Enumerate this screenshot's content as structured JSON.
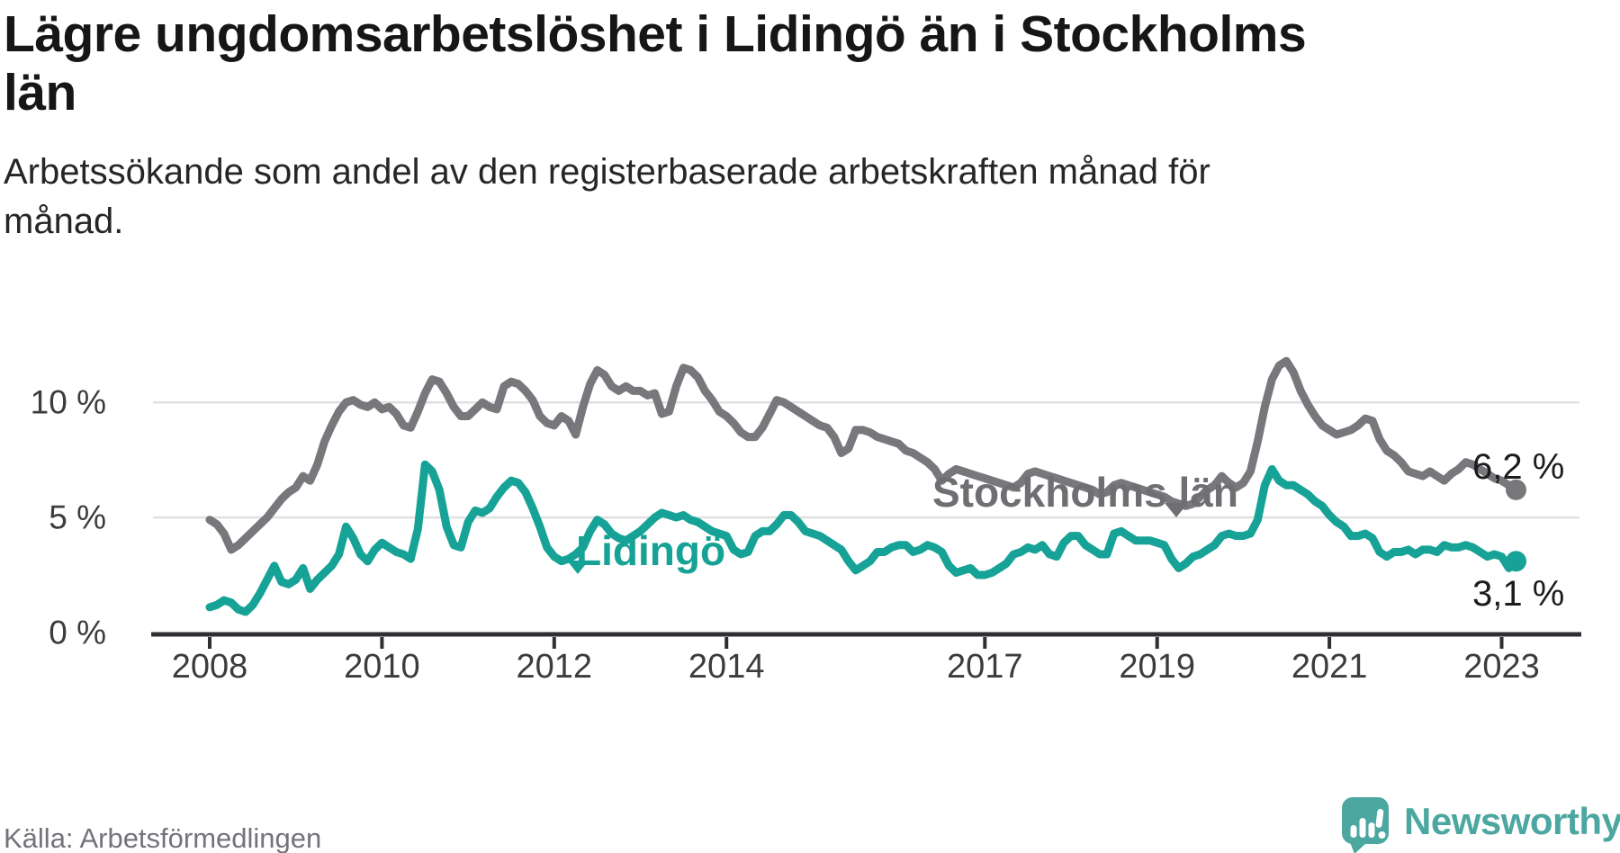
{
  "header": {
    "title_lines": [
      "Lägre ungdomsarbetslöshet i Lidingö än i Stockholms",
      "län"
    ],
    "subtitle_lines": [
      "Arbetssökande som andel av den registerbaserade arbetskraften månad för",
      "månad."
    ]
  },
  "footer": {
    "source": "Källa: Arbetsförmedlingen",
    "brand": "Newsworthy"
  },
  "colors": {
    "stockholm": "#77777c",
    "stockholm_label": "#6e6e73",
    "lidingo": "#16a296",
    "gridline": "#e0e0e0",
    "axis": "#2f2f33",
    "tick_text": "#3c3c3c"
  },
  "chart_data": {
    "type": "line",
    "unit": "%",
    "frequency": "monthly",
    "x_start": "2008-01",
    "x_end": "2023-03",
    "ylim": [
      0,
      12.5
    ],
    "grid_values": [
      5,
      10
    ],
    "yticks": [
      {
        "value": 0,
        "label": "0 %"
      },
      {
        "value": 5,
        "label": "5 %"
      },
      {
        "value": 10,
        "label": "10 %"
      }
    ],
    "xticks": [
      {
        "year": 2008,
        "label": "2008"
      },
      {
        "year": 2010,
        "label": "2010"
      },
      {
        "year": 2012,
        "label": "2012"
      },
      {
        "year": 2014,
        "label": "2014"
      },
      {
        "year": 2017,
        "label": "2017"
      },
      {
        "year": 2019,
        "label": "2019"
      },
      {
        "year": 2021,
        "label": "2021"
      },
      {
        "year": 2023,
        "label": "2023"
      }
    ],
    "legend_position": "inline-labels",
    "series": [
      {
        "name": "Stockholms län",
        "color": "#77777c",
        "end_label": "6,2 %",
        "end_value": 6.2,
        "values": [
          4.9,
          4.7,
          4.3,
          3.6,
          3.8,
          4.1,
          4.4,
          4.7,
          5.0,
          5.4,
          5.8,
          6.1,
          6.3,
          6.8,
          6.6,
          7.3,
          8.3,
          9.0,
          9.6,
          10.0,
          10.1,
          9.9,
          9.8,
          10.0,
          9.7,
          9.8,
          9.5,
          9.0,
          8.9,
          9.6,
          10.4,
          11.0,
          10.9,
          10.4,
          9.8,
          9.4,
          9.4,
          9.7,
          10.0,
          9.8,
          9.7,
          10.7,
          10.9,
          10.8,
          10.5,
          10.1,
          9.4,
          9.1,
          9.0,
          9.4,
          9.2,
          8.6,
          9.8,
          10.8,
          11.4,
          11.2,
          10.7,
          10.5,
          10.7,
          10.5,
          10.5,
          10.3,
          10.4,
          9.5,
          9.6,
          10.7,
          11.5,
          11.4,
          11.1,
          10.5,
          10.1,
          9.6,
          9.4,
          9.1,
          8.7,
          8.5,
          8.5,
          8.9,
          9.5,
          10.1,
          10.0,
          9.8,
          9.6,
          9.4,
          9.2,
          9.0,
          8.9,
          8.5,
          7.8,
          8.0,
          8.8,
          8.8,
          8.7,
          8.5,
          8.4,
          8.3,
          8.2,
          7.9,
          7.8,
          7.6,
          7.4,
          7.1,
          6.6,
          6.9,
          7.1,
          7.0,
          6.9,
          6.8,
          6.7,
          6.6,
          6.5,
          6.4,
          6.3,
          6.5,
          6.9,
          7.0,
          6.9,
          6.8,
          6.7,
          6.6,
          6.5,
          6.4,
          6.3,
          6.2,
          6.0,
          6.1,
          6.4,
          6.5,
          6.4,
          6.3,
          6.2,
          6.1,
          6.0,
          5.9,
          5.7,
          5.6,
          5.5,
          5.6,
          5.9,
          6.2,
          6.4,
          6.8,
          6.5,
          6.3,
          6.5,
          7.0,
          8.3,
          9.8,
          11.0,
          11.6,
          11.8,
          11.3,
          10.5,
          9.9,
          9.4,
          9.0,
          8.8,
          8.6,
          8.7,
          8.8,
          9.0,
          9.3,
          9.2,
          8.4,
          7.9,
          7.7,
          7.4,
          7.0,
          6.9,
          6.8,
          7.0,
          6.8,
          6.6,
          6.9,
          7.1,
          7.4,
          7.3,
          7.1,
          6.9,
          6.7,
          6.6,
          6.4,
          6.2
        ]
      },
      {
        "name": "Lidingö",
        "color": "#16a296",
        "end_label": "3,1 %",
        "end_value": 3.1,
        "values": [
          1.1,
          1.2,
          1.4,
          1.3,
          1.0,
          0.9,
          1.2,
          1.7,
          2.3,
          2.9,
          2.2,
          2.1,
          2.3,
          2.8,
          1.9,
          2.3,
          2.6,
          2.9,
          3.4,
          4.6,
          4.1,
          3.4,
          3.1,
          3.6,
          3.9,
          3.7,
          3.5,
          3.4,
          3.2,
          4.5,
          7.3,
          7.0,
          6.2,
          4.6,
          3.8,
          3.7,
          4.8,
          5.3,
          5.2,
          5.4,
          5.9,
          6.3,
          6.6,
          6.5,
          6.1,
          5.4,
          4.6,
          3.7,
          3.3,
          3.1,
          3.2,
          3.4,
          3.7,
          4.4,
          4.9,
          4.7,
          4.3,
          4.1,
          4.0,
          4.2,
          4.4,
          4.7,
          5.0,
          5.2,
          5.1,
          5.0,
          5.1,
          4.9,
          4.8,
          4.6,
          4.4,
          4.3,
          4.2,
          3.6,
          3.4,
          3.5,
          4.2,
          4.4,
          4.4,
          4.7,
          5.1,
          5.1,
          4.8,
          4.4,
          4.3,
          4.2,
          4.0,
          3.8,
          3.6,
          3.1,
          2.7,
          2.9,
          3.1,
          3.5,
          3.5,
          3.7,
          3.8,
          3.8,
          3.5,
          3.6,
          3.8,
          3.7,
          3.5,
          2.9,
          2.6,
          2.7,
          2.8,
          2.5,
          2.5,
          2.6,
          2.8,
          3.0,
          3.4,
          3.5,
          3.7,
          3.6,
          3.8,
          3.4,
          3.3,
          3.9,
          4.2,
          4.2,
          3.8,
          3.6,
          3.4,
          3.4,
          4.3,
          4.4,
          4.2,
          4.0,
          4.0,
          4.0,
          3.9,
          3.8,
          3.2,
          2.8,
          3.0,
          3.3,
          3.4,
          3.6,
          3.8,
          4.2,
          4.3,
          4.2,
          4.2,
          4.3,
          4.9,
          6.4,
          7.1,
          6.6,
          6.4,
          6.4,
          6.2,
          6.0,
          5.7,
          5.5,
          5.1,
          4.8,
          4.6,
          4.2,
          4.2,
          4.3,
          4.1,
          3.5,
          3.3,
          3.5,
          3.5,
          3.6,
          3.4,
          3.6,
          3.6,
          3.5,
          3.8,
          3.7,
          3.7,
          3.8,
          3.7,
          3.5,
          3.3,
          3.4,
          3.3,
          2.8,
          3.1
        ]
      }
    ]
  }
}
